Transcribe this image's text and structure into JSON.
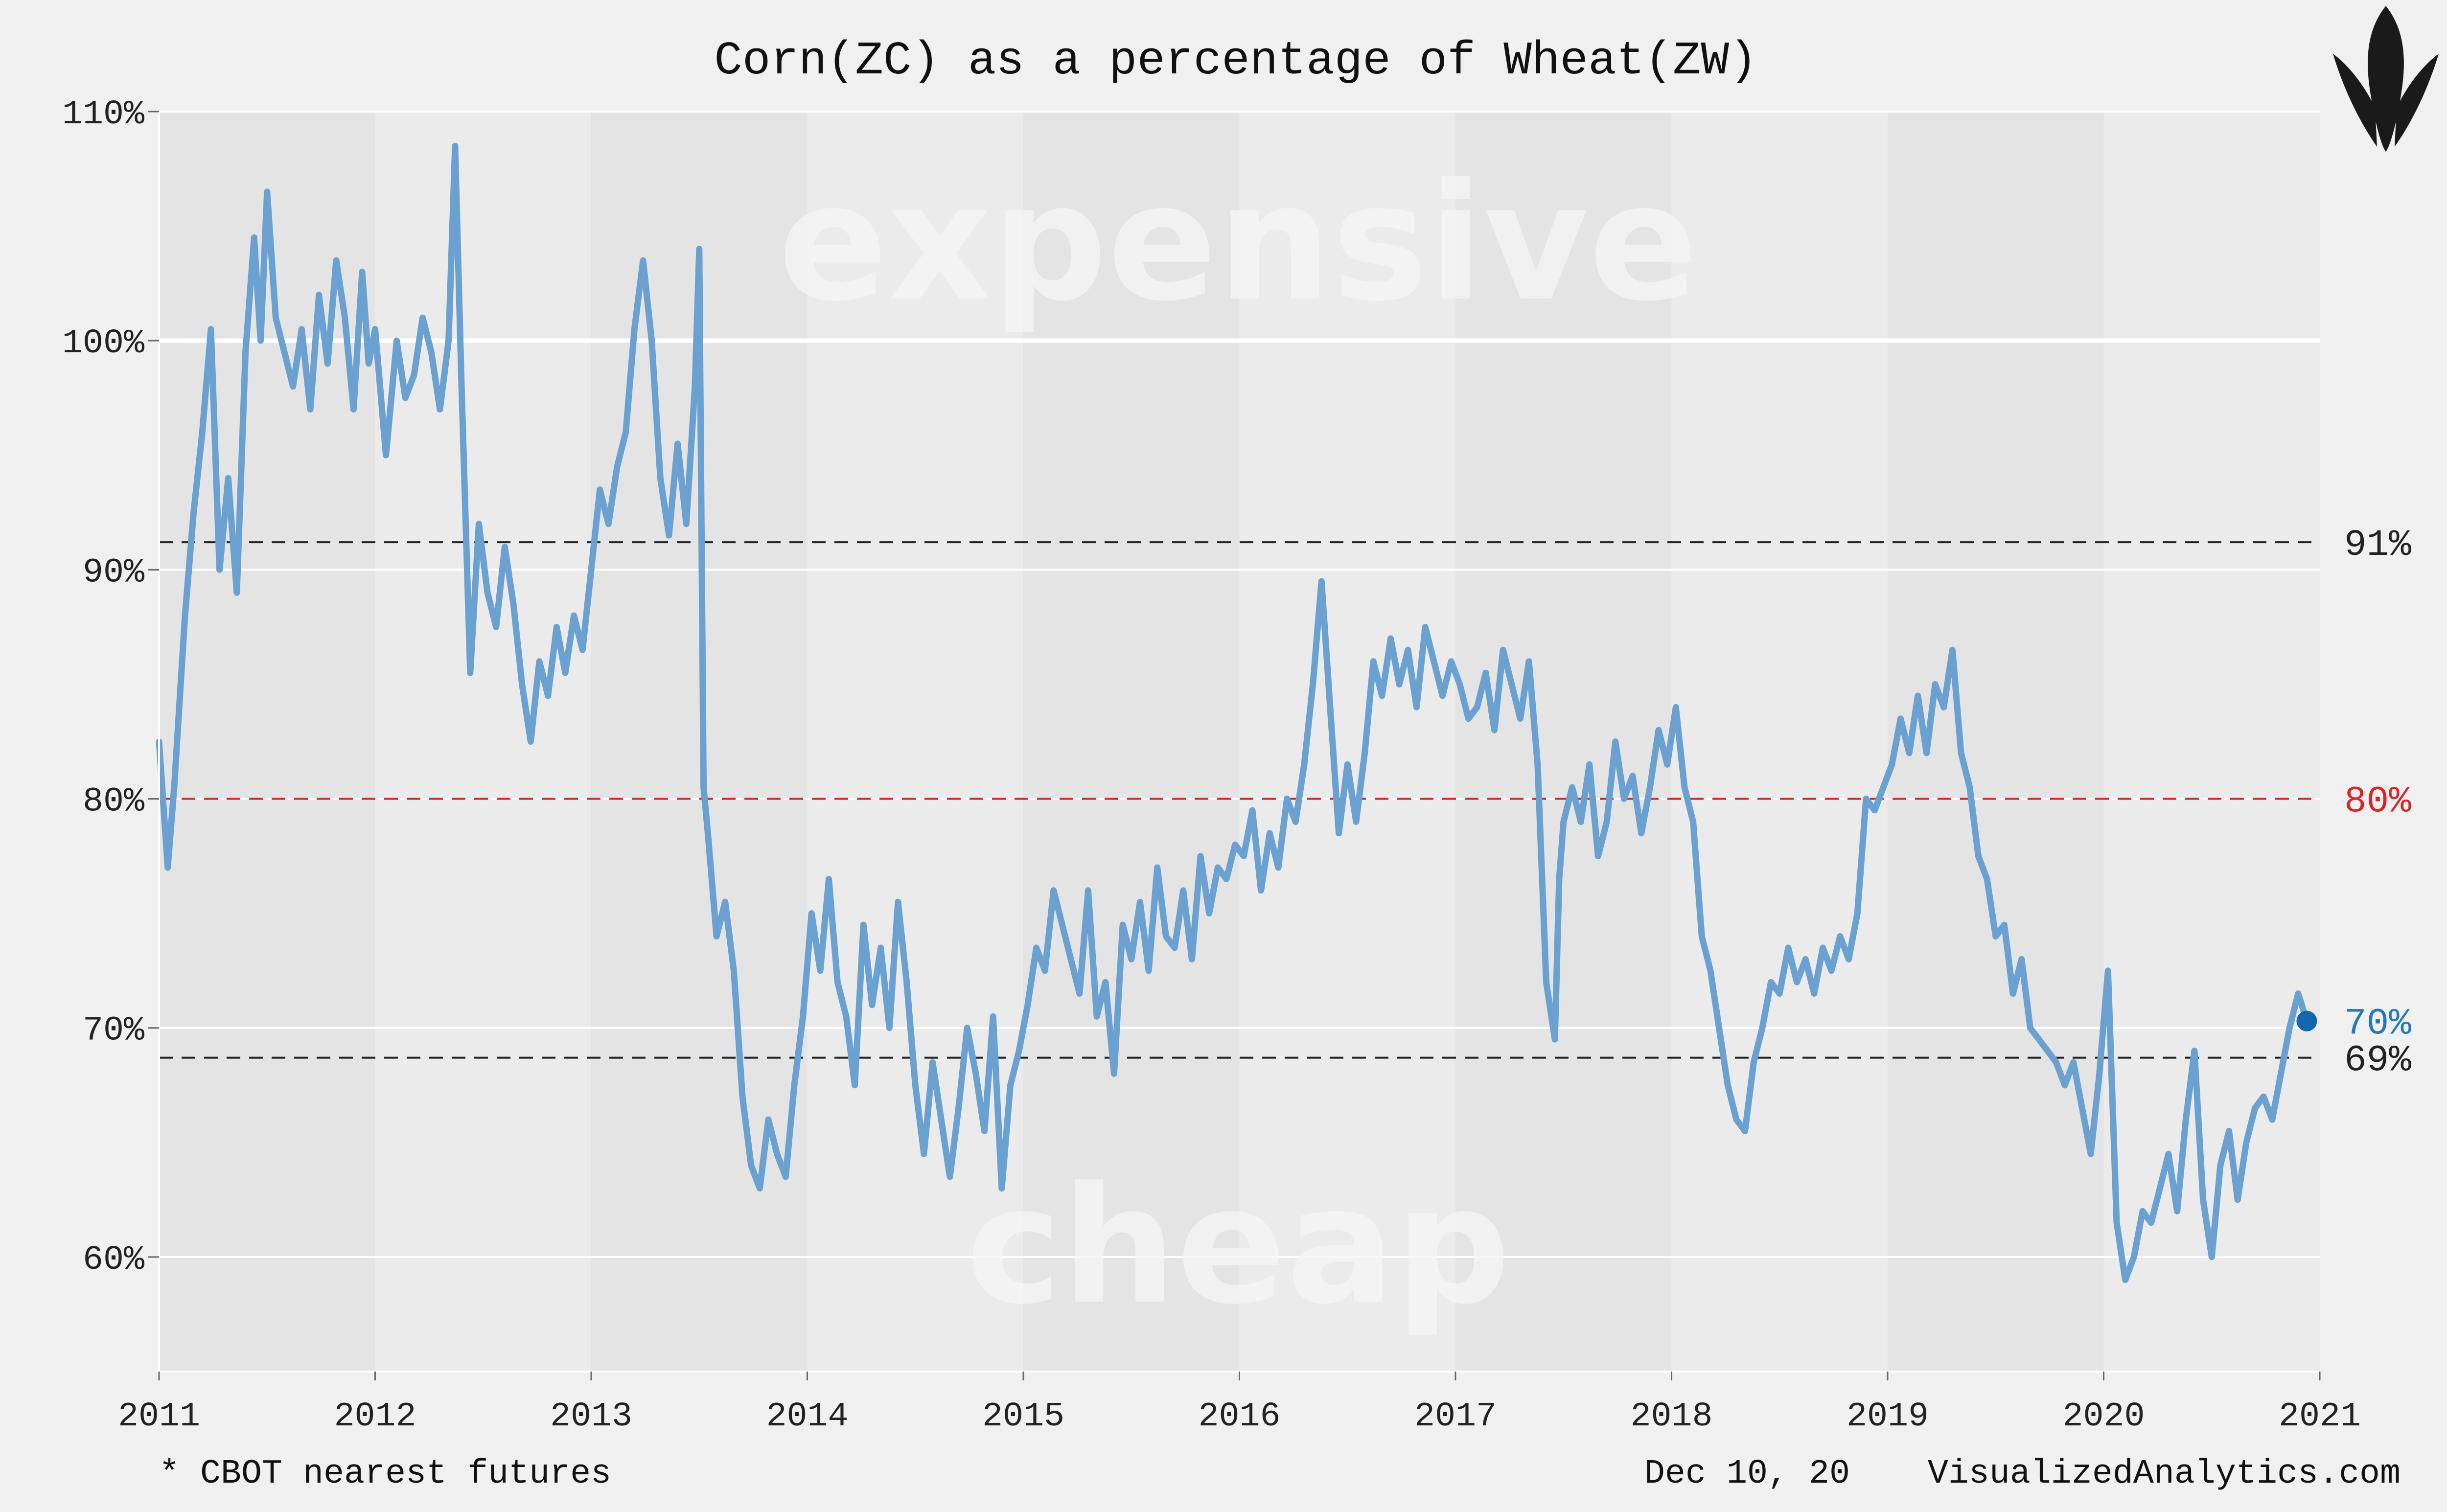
{
  "chart_data": {
    "type": "line",
    "title": "Corn(ZC) as a percentage of Wheat(ZW)",
    "xlabel": "",
    "ylabel": "",
    "x_ticks": [
      "2011",
      "2012",
      "2013",
      "2014",
      "2015",
      "2016",
      "2017",
      "2018",
      "2019",
      "2020",
      "2021"
    ],
    "y_ticks": [
      "60%",
      "70%",
      "80%",
      "90%",
      "100%",
      "110%"
    ],
    "xlim": [
      2011.0,
      2021.0
    ],
    "ylim": [
      55,
      110
    ],
    "grid": true,
    "zones": {
      "upper": "expensive",
      "lower": "cheap"
    },
    "reference_lines": [
      {
        "value": 91.2,
        "label": "91%",
        "color": "#222222",
        "style": "dashed"
      },
      {
        "value": 80.0,
        "label": "80%",
        "color": "#d62728",
        "style": "dashed"
      },
      {
        "value": 68.7,
        "label": "69%",
        "color": "#222222",
        "style": "dashed"
      }
    ],
    "last_value": {
      "x": 2020.94,
      "y": 70.3,
      "label": "70%",
      "color": "#2878b5"
    },
    "footnote": "* CBOT nearest futures",
    "date_label": "Dec 10, 20",
    "source": "VisualizedAnalytics.com",
    "colors": {
      "line": "#6aa1d0",
      "last_point": "#1665b0",
      "background": "#f0f0f0",
      "plot": "#e9e9e9"
    },
    "series": [
      {
        "x": [
          2011.0,
          2011.04,
          2011.07,
          2011.12,
          2011.16,
          2011.2,
          2011.24,
          2011.28,
          2011.32,
          2011.36,
          2011.4,
          2011.44,
          2011.47,
          2011.5,
          2011.54,
          2011.58,
          2011.62,
          2011.66,
          2011.7,
          2011.74,
          2011.78,
          2011.82,
          2011.86,
          2011.9,
          2011.94,
          2011.97,
          2012.0,
          2012.05,
          2012.1,
          2012.14,
          2012.18,
          2012.22,
          2012.26,
          2012.3,
          2012.34,
          2012.37,
          2012.4,
          2012.44,
          2012.48,
          2012.52,
          2012.56,
          2012.6,
          2012.64,
          2012.68,
          2012.72,
          2012.76,
          2012.8,
          2012.84,
          2012.88,
          2012.92,
          2012.96,
          2013.0,
          2013.04,
          2013.08,
          2013.12,
          2013.16,
          2013.2,
          2013.24,
          2013.28,
          2013.32,
          2013.36,
          2013.4,
          2013.44,
          2013.48,
          2013.5,
          2013.52,
          2013.54,
          2013.58,
          2013.62,
          2013.66,
          2013.7,
          2013.74,
          2013.78,
          2013.82,
          2013.86,
          2013.9,
          2013.94,
          2013.98,
          2014.02,
          2014.06,
          2014.1,
          2014.14,
          2014.18,
          2014.22,
          2014.26,
          2014.3,
          2014.34,
          2014.38,
          2014.42,
          2014.46,
          2014.5,
          2014.54,
          2014.58,
          2014.62,
          2014.66,
          2014.7,
          2014.74,
          2014.78,
          2014.82,
          2014.86,
          2014.9,
          2014.94,
          2014.98,
          2015.02,
          2015.06,
          2015.1,
          2015.14,
          2015.18,
          2015.22,
          2015.26,
          2015.3,
          2015.34,
          2015.38,
          2015.42,
          2015.46,
          2015.5,
          2015.54,
          2015.58,
          2015.62,
          2015.66,
          2015.7,
          2015.74,
          2015.78,
          2015.82,
          2015.86,
          2015.9,
          2015.94,
          2015.98,
          2016.02,
          2016.06,
          2016.1,
          2016.14,
          2016.18,
          2016.22,
          2016.26,
          2016.3,
          2016.34,
          2016.38,
          2016.42,
          2016.46,
          2016.5,
          2016.54,
          2016.58,
          2016.62,
          2016.66,
          2016.7,
          2016.74,
          2016.78,
          2016.82,
          2016.86,
          2016.9,
          2016.94,
          2016.98,
          2017.02,
          2017.06,
          2017.1,
          2017.14,
          2017.18,
          2017.22,
          2017.26,
          2017.3,
          2017.34,
          2017.38,
          2017.42,
          2017.46,
          2017.48,
          2017.5,
          2017.54,
          2017.58,
          2017.62,
          2017.66,
          2017.7,
          2017.74,
          2017.78,
          2017.82,
          2017.86,
          2017.9,
          2017.94,
          2017.98,
          2018.02,
          2018.06,
          2018.1,
          2018.14,
          2018.18,
          2018.22,
          2018.26,
          2018.3,
          2018.34,
          2018.38,
          2018.42,
          2018.46,
          2018.5,
          2018.54,
          2018.58,
          2018.62,
          2018.66,
          2018.7,
          2018.74,
          2018.78,
          2018.82,
          2018.86,
          2018.9,
          2018.94,
          2018.98,
          2019.02,
          2019.06,
          2019.1,
          2019.14,
          2019.18,
          2019.22,
          2019.26,
          2019.3,
          2019.34,
          2019.38,
          2019.42,
          2019.46,
          2019.5,
          2019.54,
          2019.58,
          2019.62,
          2019.66,
          2019.7,
          2019.74,
          2019.78,
          2019.82,
          2019.86,
          2019.9,
          2019.94,
          2019.98,
          2020.02,
          2020.06,
          2020.1,
          2020.14,
          2020.18,
          2020.22,
          2020.26,
          2020.3,
          2020.34,
          2020.38,
          2020.42,
          2020.46,
          2020.5,
          2020.54,
          2020.58,
          2020.62,
          2020.66,
          2020.7,
          2020.74,
          2020.78,
          2020.82,
          2020.86,
          2020.9,
          2020.94
        ],
        "y": [
          82.5,
          77.0,
          80.5,
          88.0,
          92.5,
          96.0,
          100.5,
          90.0,
          94.0,
          89.0,
          99.5,
          104.5,
          100.0,
          106.5,
          101.0,
          99.5,
          98.0,
          100.5,
          97.0,
          102.0,
          99.0,
          103.5,
          101.0,
          97.0,
          103.0,
          99.0,
          100.5,
          95.0,
          100.0,
          97.5,
          98.5,
          101.0,
          99.5,
          97.0,
          100.0,
          108.5,
          98.0,
          85.5,
          92.0,
          89.0,
          87.5,
          91.0,
          88.5,
          85.0,
          82.5,
          86.0,
          84.5,
          87.5,
          85.5,
          88.0,
          86.5,
          90.0,
          93.5,
          92.0,
          94.5,
          96.0,
          100.5,
          103.5,
          100.0,
          94.0,
          91.5,
          95.5,
          92.0,
          98.0,
          104.0,
          80.5,
          78.5,
          74.0,
          75.5,
          72.5,
          67.0,
          64.0,
          63.0,
          66.0,
          64.5,
          63.5,
          67.5,
          70.5,
          75.0,
          72.5,
          76.5,
          72.0,
          70.5,
          67.5,
          74.5,
          71.0,
          73.5,
          70.0,
          75.5,
          72.0,
          67.5,
          64.5,
          68.5,
          66.0,
          63.5,
          66.5,
          70.0,
          68.0,
          65.5,
          70.5,
          63.0,
          67.5,
          69.0,
          71.0,
          73.5,
          72.5,
          76.0,
          74.5,
          73.0,
          71.5,
          76.0,
          70.5,
          72.0,
          68.0,
          74.5,
          73.0,
          75.5,
          72.5,
          77.0,
          74.0,
          73.5,
          76.0,
          73.0,
          77.5,
          75.0,
          77.0,
          76.5,
          78.0,
          77.5,
          79.5,
          76.0,
          78.5,
          77.0,
          80.0,
          79.0,
          81.5,
          85.0,
          89.5,
          84.0,
          78.5,
          81.5,
          79.0,
          82.0,
          86.0,
          84.5,
          87.0,
          85.0,
          86.5,
          84.0,
          87.5,
          86.0,
          84.5,
          86.0,
          85.0,
          83.5,
          84.0,
          85.5,
          83.0,
          86.5,
          85.0,
          83.5,
          86.0,
          81.5,
          72.0,
          69.5,
          76.5,
          79.0,
          80.5,
          79.0,
          81.5,
          77.5,
          79.0,
          82.5,
          80.0,
          81.0,
          78.5,
          80.5,
          83.0,
          81.5,
          84.0,
          80.5,
          79.0,
          74.0,
          72.5,
          70.0,
          67.5,
          66.0,
          65.5,
          68.5,
          70.0,
          72.0,
          71.5,
          73.5,
          72.0,
          73.0,
          71.5,
          73.5,
          72.5,
          74.0,
          73.0,
          75.0,
          80.0,
          79.5,
          80.5,
          81.5,
          83.5,
          82.0,
          84.5,
          82.0,
          85.0,
          84.0,
          86.5,
          82.0,
          80.5,
          77.5,
          76.5,
          74.0,
          74.5,
          71.5,
          73.0,
          70.0,
          69.5,
          69.0,
          68.5,
          67.5,
          68.5,
          66.5,
          64.5,
          68.0,
          72.5,
          61.5,
          59.0,
          60.0,
          62.0,
          61.5,
          63.0,
          64.5,
          62.0,
          66.0,
          69.0,
          62.5,
          60.0,
          64.0,
          65.5,
          62.5,
          65.0,
          66.5,
          67.0,
          66.0,
          68.0,
          70.0,
          71.5,
          70.3
        ]
      }
    ]
  }
}
